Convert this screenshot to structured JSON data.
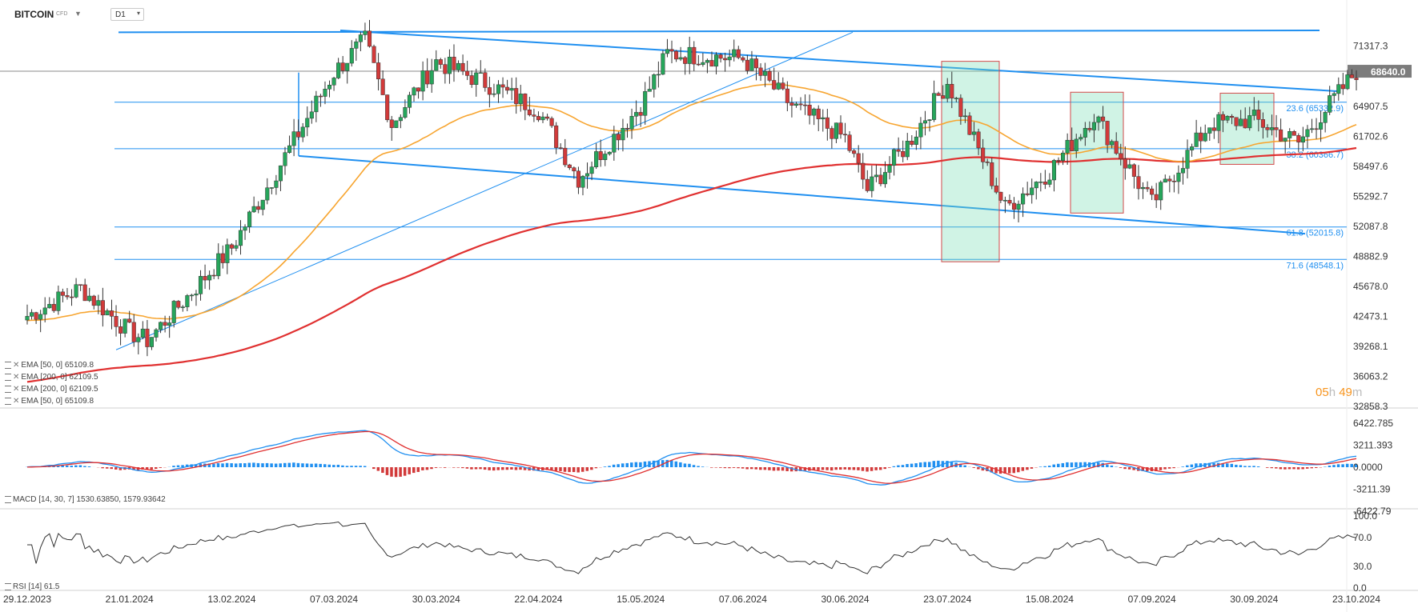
{
  "header": {
    "symbol": "BITCOIN",
    "symbol_tag": "CFD",
    "dropdown_icon": "caret-down-icon",
    "timeframe": "D1"
  },
  "price_axis": {
    "ticks": [
      "71317.3",
      "64907.5",
      "61702.6",
      "58497.6",
      "55292.7",
      "52087.8",
      "48882.9",
      "45678.0",
      "42473.1",
      "39268.1",
      "36063.2",
      "32858.3"
    ],
    "current_price": "68640.0",
    "current_price_color": "#888888"
  },
  "date_axis": [
    "29.12.2023",
    "21.01.2024",
    "13.02.2024",
    "07.03.2024",
    "30.03.2024",
    "22.04.2024",
    "15.05.2024",
    "07.06.2024",
    "30.06.2024",
    "23.07.2024",
    "15.08.2024",
    "07.09.2024",
    "30.09.2024",
    "23.10.2024"
  ],
  "fib_levels": [
    {
      "label": "23.6 (65332.9)",
      "value": 65332.9
    },
    {
      "label": "38.2 (60366.7)",
      "value": 60366.7
    },
    {
      "label": "61.8 (52015.8)",
      "value": 52015.8
    },
    {
      "label": "71.6 (48548.1)",
      "value": 48548.1
    }
  ],
  "indicators": [
    {
      "label": "EMA [50, 0]  65109.8"
    },
    {
      "label": "EMA [200, 0]  62109.5"
    },
    {
      "label": "EMA [200, 0]  62109.5"
    },
    {
      "label": "EMA [50, 0]  65109.8"
    }
  ],
  "timer": {
    "hours": "05",
    "h": "h",
    "minutes": "49",
    "m": "m"
  },
  "macd": {
    "label": "MACD [14, 30, 7]  1530.63850,   1579.93642",
    "ticks": [
      "6422.785",
      "3211.393",
      "0.0000",
      "-3211.39",
      "-6422.79"
    ]
  },
  "rsi": {
    "label": "RSI [14]  61.5",
    "ticks": [
      "100.0",
      "70.0",
      "30.0",
      "0.0"
    ]
  },
  "colors": {
    "up": "#26a65b",
    "down": "#d23a3a",
    "ema50": "#f7a530",
    "ema200": "#e03030",
    "trend": "#1f8ff0",
    "macd": "#1f8ff0",
    "signal": "#e03030"
  },
  "chart_data": {
    "type": "candlestick",
    "symbol": "BITCOIN",
    "timeframe": "D1",
    "x_range": [
      "29.12.2023",
      "23.10.2024"
    ],
    "price_range": [
      32858.3,
      73000
    ],
    "closes_approx": [
      {
        "date": "29.12.2023",
        "close": 42500
      },
      {
        "date": "10.01.2024",
        "close": 45500
      },
      {
        "date": "21.01.2024",
        "close": 40800
      },
      {
        "date": "25.01.2024",
        "close": 39900
      },
      {
        "date": "13.02.2024",
        "close": 49800
      },
      {
        "date": "28.02.2024",
        "close": 62000
      },
      {
        "date": "07.03.2024",
        "close": 68500
      },
      {
        "date": "14.03.2024",
        "close": 72000
      },
      {
        "date": "20.03.2024",
        "close": 63000
      },
      {
        "date": "30.03.2024",
        "close": 69700
      },
      {
        "date": "12.04.2024",
        "close": 67000
      },
      {
        "date": "22.04.2024",
        "close": 64500
      },
      {
        "date": "01.05.2024",
        "close": 57200
      },
      {
        "date": "15.05.2024",
        "close": 65000
      },
      {
        "date": "21.05.2024",
        "close": 70500
      },
      {
        "date": "07.06.2024",
        "close": 70000
      },
      {
        "date": "18.06.2024",
        "close": 65000
      },
      {
        "date": "30.06.2024",
        "close": 61500
      },
      {
        "date": "05.07.2024",
        "close": 56000
      },
      {
        "date": "14.07.2024",
        "close": 60800
      },
      {
        "date": "23.07.2024",
        "close": 67500
      },
      {
        "date": "05.08.2024",
        "close": 54000
      },
      {
        "date": "15.08.2024",
        "close": 58000
      },
      {
        "date": "25.08.2024",
        "close": 64000
      },
      {
        "date": "07.09.2024",
        "close": 54500
      },
      {
        "date": "20.09.2024",
        "close": 63000
      },
      {
        "date": "30.09.2024",
        "close": 63500
      },
      {
        "date": "10.10.2024",
        "close": 61000
      },
      {
        "date": "23.10.2024",
        "close": 68640
      }
    ],
    "ema50": {
      "end": 65109.8
    },
    "ema200": {
      "end": 62109.5
    },
    "fibonacci": [
      65332.9,
      60366.7,
      52015.8,
      48548.1
    ],
    "macd": {
      "params": [
        14,
        30,
        7
      ],
      "macd": 1530.6385,
      "signal": 1579.93642,
      "range": [
        -6422.79,
        6422.785
      ]
    },
    "rsi": {
      "period": 14,
      "value": 61.5,
      "range": [
        0,
        100
      ]
    }
  }
}
